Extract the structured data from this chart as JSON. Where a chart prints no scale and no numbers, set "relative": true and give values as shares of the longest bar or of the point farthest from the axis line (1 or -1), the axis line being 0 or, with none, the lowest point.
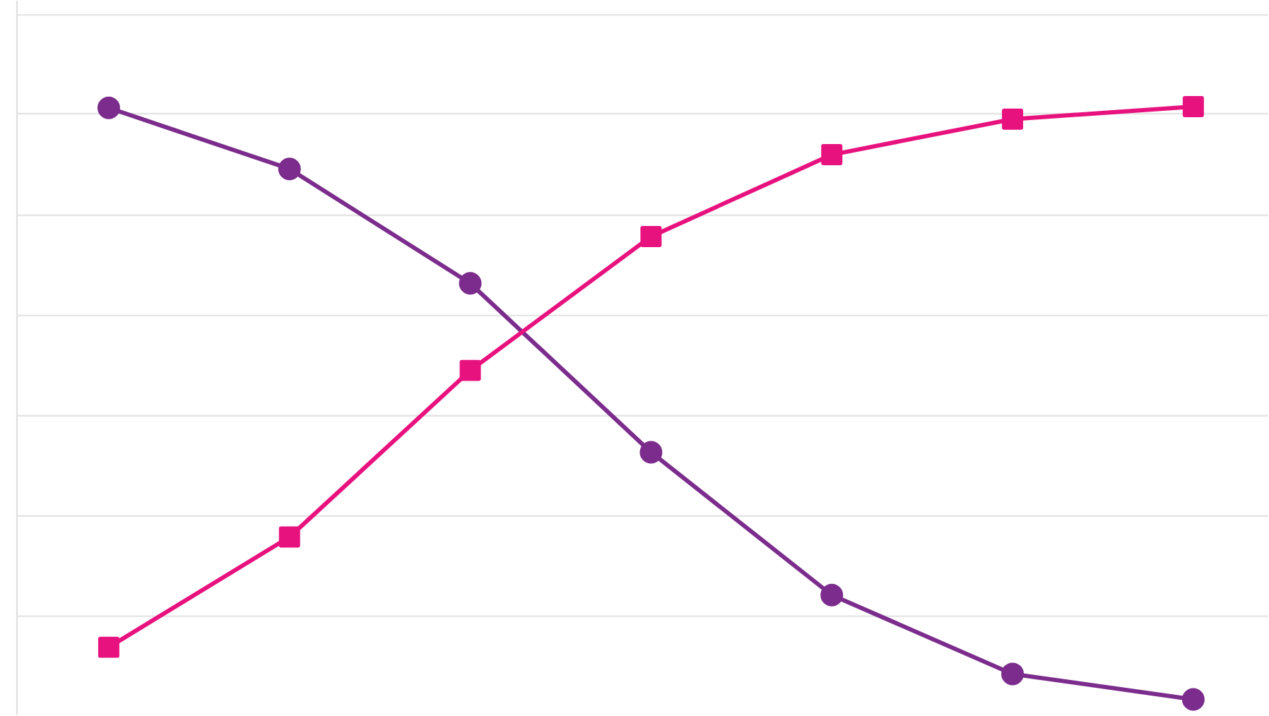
{
  "chart_data": {
    "type": "line",
    "relative": true,
    "categories": [
      null,
      null,
      null,
      null,
      null,
      null,
      null
    ],
    "series": [
      {
        "color": "#7b2c8c",
        "marker": "circle",
        "values": [
          0.998,
          0.895,
          0.702,
          0.417,
          0.176,
          0.043,
          0
        ]
      },
      {
        "color": "#e8127f",
        "marker": "square",
        "values": [
          0.088,
          0.274,
          0.555,
          0.781,
          0.919,
          0.979,
          1.0
        ]
      }
    ],
    "grid": "y",
    "line_style": "solid"
  }
}
